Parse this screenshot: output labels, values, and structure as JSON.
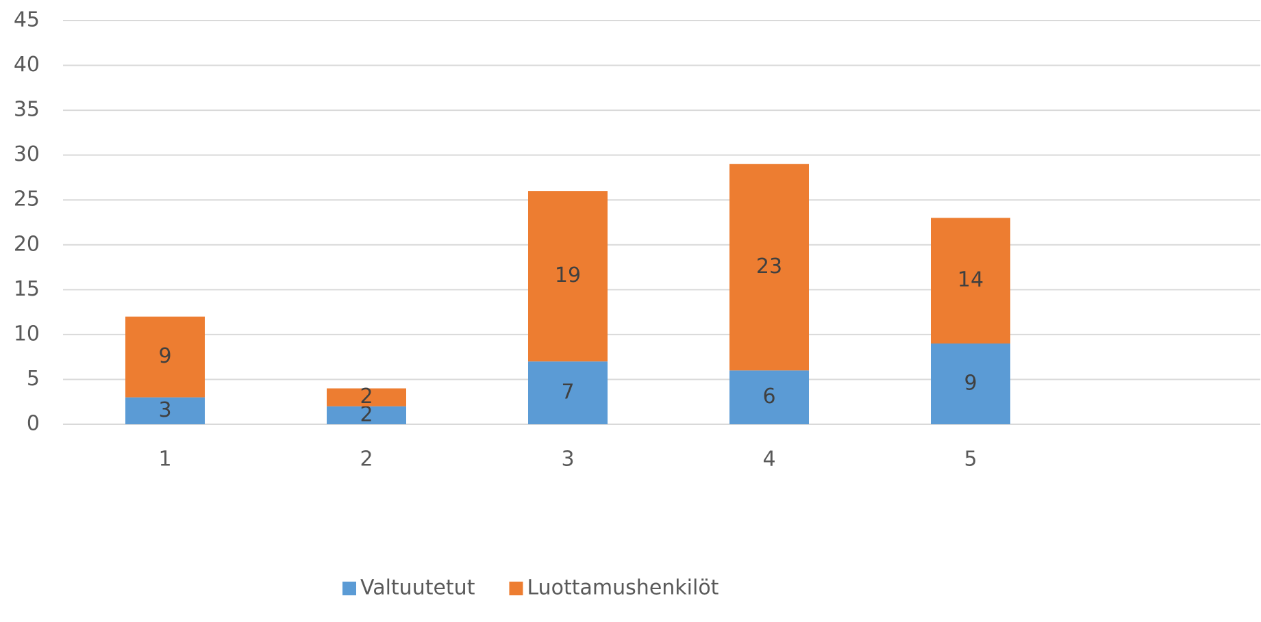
{
  "chart_data": {
    "type": "stacked_bar",
    "categories": [
      "1",
      "2",
      "3",
      "4",
      "5"
    ],
    "series": [
      {
        "name": "Valtuutetut",
        "color": "#5b9bd5",
        "values": [
          3,
          2,
          7,
          6,
          9
        ]
      },
      {
        "name": "Luottamushenkilöt",
        "color": "#ed7d31",
        "values": [
          9,
          2,
          19,
          23,
          14
        ]
      }
    ],
    "ylim": [
      0,
      45
    ],
    "yticks": [
      0,
      5,
      10,
      15,
      20,
      25,
      30,
      35,
      40,
      45
    ],
    "grid": true,
    "legend": "bottom"
  }
}
